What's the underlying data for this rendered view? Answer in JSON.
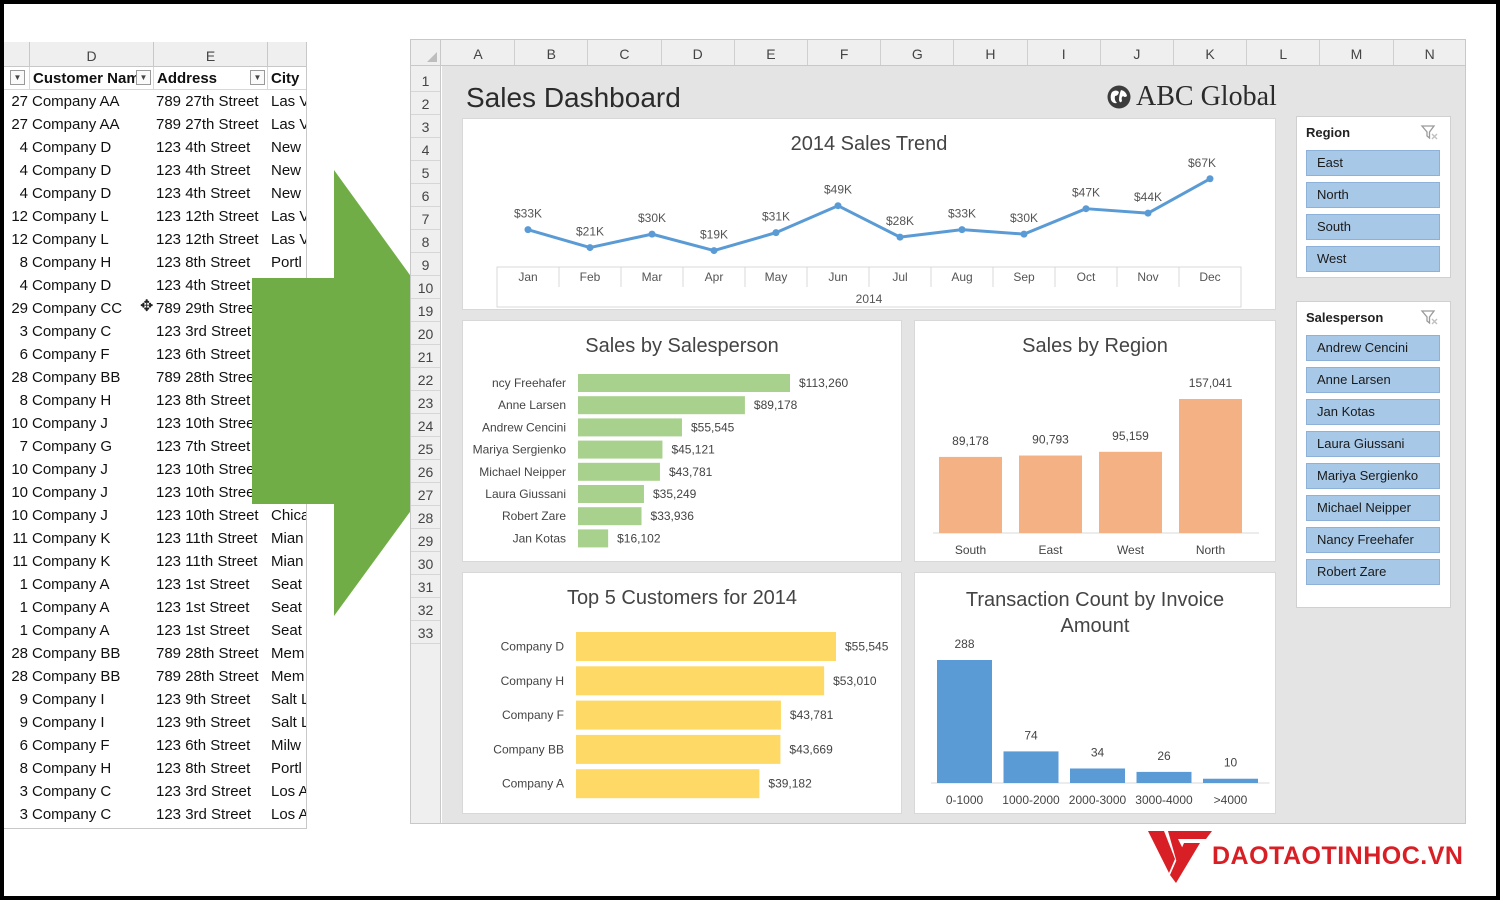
{
  "left_sheet": {
    "col_headers": [
      "D",
      "E"
    ],
    "table_headers": {
      "customer": "Customer Nam",
      "address": "Address",
      "city": "City"
    },
    "rows": [
      {
        "num": "27",
        "customer": "Company AA",
        "address": "789 27th Street",
        "city": "Las V"
      },
      {
        "num": "27",
        "customer": "Company AA",
        "address": "789 27th Street",
        "city": "Las V"
      },
      {
        "num": "4",
        "customer": "Company D",
        "address": "123 4th Street",
        "city": "New"
      },
      {
        "num": "4",
        "customer": "Company D",
        "address": "123 4th Street",
        "city": "New"
      },
      {
        "num": "4",
        "customer": "Company D",
        "address": "123 4th Street",
        "city": "New"
      },
      {
        "num": "12",
        "customer": "Company L",
        "address": "123 12th Street",
        "city": "Las V"
      },
      {
        "num": "12",
        "customer": "Company L",
        "address": "123 12th Street",
        "city": "Las V"
      },
      {
        "num": "8",
        "customer": "Company H",
        "address": "123 8th Street",
        "city": "Portl"
      },
      {
        "num": "4",
        "customer": "Company D",
        "address": "123 4th Street",
        "city": ""
      },
      {
        "num": "29",
        "customer": "Company CC",
        "address": "789 29th Stree",
        "city": ""
      },
      {
        "num": "3",
        "customer": "Company C",
        "address": "123 3rd Street",
        "city": ""
      },
      {
        "num": "6",
        "customer": "Company F",
        "address": "123 6th Street",
        "city": ""
      },
      {
        "num": "28",
        "customer": "Company BB",
        "address": "789 28th Stree",
        "city": ""
      },
      {
        "num": "8",
        "customer": "Company H",
        "address": "123 8th Street",
        "city": ""
      },
      {
        "num": "10",
        "customer": "Company J",
        "address": "123 10th Stree",
        "city": ""
      },
      {
        "num": "7",
        "customer": "Company G",
        "address": "123 7th Street",
        "city": ""
      },
      {
        "num": "10",
        "customer": "Company J",
        "address": "123 10th Stree",
        "city": ""
      },
      {
        "num": "10",
        "customer": "Company J",
        "address": "123 10th Stree",
        "city": ""
      },
      {
        "num": "10",
        "customer": "Company J",
        "address": "123 10th Street",
        "city": "Chica"
      },
      {
        "num": "11",
        "customer": "Company K",
        "address": "123 11th Street",
        "city": "Mian"
      },
      {
        "num": "11",
        "customer": "Company K",
        "address": "123 11th Street",
        "city": "Mian"
      },
      {
        "num": "1",
        "customer": "Company A",
        "address": "123 1st Street",
        "city": "Seat"
      },
      {
        "num": "1",
        "customer": "Company A",
        "address": "123 1st Street",
        "city": "Seat"
      },
      {
        "num": "1",
        "customer": "Company A",
        "address": "123 1st Street",
        "city": "Seat"
      },
      {
        "num": "28",
        "customer": "Company BB",
        "address": "789 28th Street",
        "city": "Mem"
      },
      {
        "num": "28",
        "customer": "Company BB",
        "address": "789 28th Street",
        "city": "Mem"
      },
      {
        "num": "9",
        "customer": "Company I",
        "address": "123 9th Street",
        "city": "Salt L"
      },
      {
        "num": "9",
        "customer": "Company I",
        "address": "123 9th Street",
        "city": "Salt L"
      },
      {
        "num": "6",
        "customer": "Company F",
        "address": "123 6th Street",
        "city": "Milw"
      },
      {
        "num": "8",
        "customer": "Company H",
        "address": "123 8th Street",
        "city": "Portl"
      },
      {
        "num": "3",
        "customer": "Company C",
        "address": "123 3rd Street",
        "city": "Los A"
      },
      {
        "num": "3",
        "customer": "Company C",
        "address": "123 3rd Street",
        "city": "Los A"
      }
    ]
  },
  "right_sheet": {
    "col_headers": [
      "A",
      "B",
      "C",
      "D",
      "E",
      "F",
      "G",
      "H",
      "I",
      "J",
      "K",
      "L",
      "M",
      "N"
    ],
    "row_headers": [
      "1",
      "2",
      "3",
      "4",
      "5",
      "6",
      "7",
      "8",
      "9",
      "10",
      "19",
      "20",
      "21",
      "22",
      "23",
      "24",
      "25",
      "26",
      "27",
      "28",
      "29",
      "30",
      "31",
      "32",
      "33"
    ]
  },
  "dashboard": {
    "title": "Sales Dashboard",
    "brand": "ABC Global"
  },
  "colors": {
    "line": "#5b9bd5",
    "salesperson_bar": "#a9d18e",
    "region_bar": "#f4b183",
    "customer_bar": "#ffd966",
    "transaction_bar": "#5b9bd5",
    "slicer_button": "#a8c8e8",
    "arrow": "#70ad47",
    "logo_red": "#d91f26"
  },
  "chart_data": [
    {
      "type": "line",
      "title": "2014 Sales Trend",
      "xlabel": "2014",
      "categories": [
        "Jan",
        "Feb",
        "Mar",
        "Apr",
        "May",
        "Jun",
        "Jul",
        "Aug",
        "Sep",
        "Oct",
        "Nov",
        "Dec"
      ],
      "values": [
        33,
        21,
        30,
        19,
        31,
        49,
        28,
        33,
        30,
        47,
        44,
        67
      ],
      "labels": [
        "$33K",
        "$21K",
        "$30K",
        "$19K",
        "$31K",
        "$49K",
        "$28K",
        "$33K",
        "$30K",
        "$47K",
        "$44K",
        "$67K"
      ],
      "ylim": [
        0,
        75
      ]
    },
    {
      "type": "bar",
      "orientation": "horizontal",
      "title": "Sales by Salesperson",
      "categories": [
        "ncy Freehafer",
        "Anne Larsen",
        "Andrew Cencini",
        "Mariya Sergienko",
        "Michael Neipper",
        "Laura Giussani",
        "Robert Zare",
        "Jan Kotas"
      ],
      "values": [
        113260,
        89178,
        55545,
        45121,
        43781,
        35249,
        33936,
        16102
      ],
      "labels": [
        "$113,260",
        "$89,178",
        "$55,545",
        "$45,121",
        "$43,781",
        "$35,249",
        "$33,936",
        "$16,102"
      ]
    },
    {
      "type": "bar",
      "title": "Sales by Region",
      "categories": [
        "South",
        "East",
        "West",
        "North"
      ],
      "values": [
        89178,
        90793,
        95159,
        157041
      ],
      "labels": [
        "89,178",
        "90,793",
        "95,159",
        "157,041"
      ]
    },
    {
      "type": "bar",
      "orientation": "horizontal",
      "title": "Top 5 Customers for 2014",
      "categories": [
        "Company D",
        "Company H",
        "Company F",
        "Company BB",
        "Company A"
      ],
      "values": [
        55545,
        53010,
        43781,
        43669,
        39182
      ],
      "labels": [
        "$55,545",
        "$53,010",
        "$43,781",
        "$43,669",
        "$39,182"
      ]
    },
    {
      "type": "bar",
      "title": "Transaction Count by Invoice Amount",
      "title_lines": [
        "Transaction Count by Invoice",
        "Amount"
      ],
      "categories": [
        "0-1000",
        "1000-2000",
        "2000-3000",
        "3000-4000",
        ">4000"
      ],
      "values": [
        288,
        74,
        34,
        26,
        10
      ],
      "labels": [
        "288",
        "74",
        "34",
        "26",
        "10"
      ]
    }
  ],
  "slicers": {
    "region": {
      "title": "Region",
      "items": [
        "East",
        "North",
        "South",
        "West"
      ]
    },
    "salesperson": {
      "title": "Salesperson",
      "items": [
        "Andrew Cencini",
        "Anne Larsen",
        "Jan Kotas",
        "Laura Giussani",
        "Mariya Sergienko",
        "Michael Neipper",
        "Nancy Freehafer",
        "Robert Zare"
      ]
    }
  },
  "icons": {
    "cursor": "cell-cursor-icon",
    "filter_clear": "filter-clear-icon",
    "globe": "globe-icon",
    "dropdown": "filter-dropdown-icon"
  },
  "logo": {
    "text": "DAOTAOTINHOC.VN"
  }
}
